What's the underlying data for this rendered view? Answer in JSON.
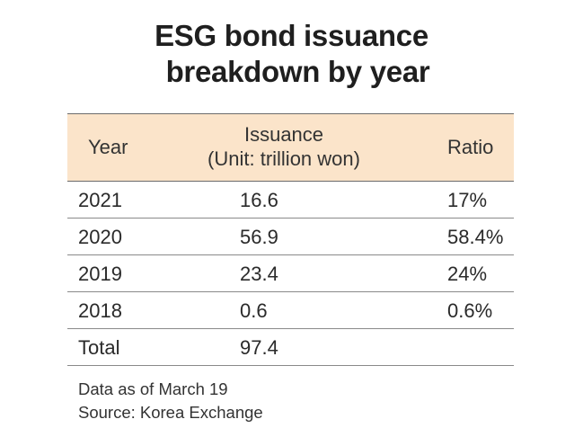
{
  "chart_data": {
    "type": "table",
    "title_line1": "ESG bond issuance",
    "title_line2": "breakdown by year",
    "columns": {
      "year": "Year",
      "issuance_line1": "Issuance",
      "issuance_line2": "(Unit: trillion won)",
      "ratio": "Ratio"
    },
    "rows": [
      {
        "year": "2021",
        "value": "16.6",
        "ratio": "17%"
      },
      {
        "year": "2020",
        "value": "56.9",
        "ratio": "58.4%"
      },
      {
        "year": "2019",
        "value": "23.4",
        "ratio": "24%"
      },
      {
        "year": "2018",
        "value": "0.6",
        "ratio": "0.6%"
      },
      {
        "year": "Total",
        "value": "97.4",
        "ratio": ""
      }
    ],
    "notes": {
      "line1": "Data as of March 19",
      "line2": "Source: Korea Exchange"
    },
    "colors": {
      "header_background": "#fbe4ca"
    }
  }
}
